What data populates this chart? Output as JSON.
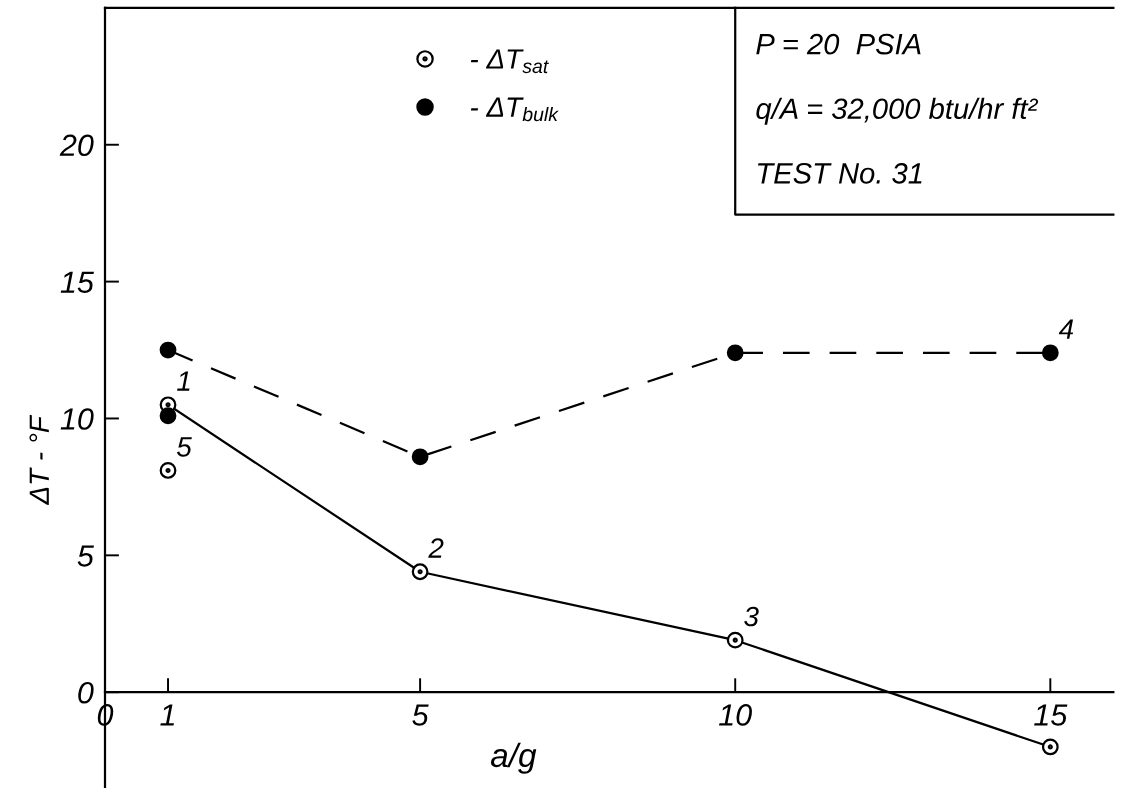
{
  "chart_data": {
    "type": "line",
    "xlabel": "a/g",
    "ylabel": "ΔT - °F",
    "xlim": [
      0,
      16
    ],
    "ylim": [
      -3.5,
      25
    ],
    "xticks": [
      0,
      1,
      5,
      10,
      15
    ],
    "yticks": [
      0,
      5,
      10,
      15,
      20
    ],
    "grid": false,
    "legend": "top",
    "series": [
      {
        "name": "- ΔT$_{sat}$",
        "color": "#000000",
        "marker": "circle-dot",
        "line_style": "solid",
        "x": [
          1,
          5,
          10,
          15
        ],
        "values": [
          10.5,
          4.4,
          1.9,
          -2.0
        ]
      },
      {
        "name": "- ΔT$_{bulk}$",
        "color": "#000000",
        "marker": "circle",
        "line_style": "dashed",
        "x": [
          1,
          5,
          10,
          15
        ],
        "values": [
          12.5,
          8.6,
          12.4,
          12.4
        ]
      },
      {
        "color": "#000000",
        "type": "scatter",
        "marker": "circle-dot",
        "x": [
          1
        ],
        "values": [
          8.1
        ]
      },
      {
        "color": "#000000",
        "type": "scatter",
        "marker": "circle",
        "x": [
          1
        ],
        "values": [
          10.1
        ]
      }
    ],
    "annotations": [
      "P = 20  PSIA",
      "q/A = 32,000 btu/hr ft²",
      "TEST No. 31",
      {
        "text": "1",
        "x": 1,
        "y": 10.5
      },
      {
        "text": "2",
        "x": 5,
        "y": 4.4
      },
      {
        "text": "3",
        "x": 10,
        "y": 1.9
      },
      {
        "text": "4",
        "x": 15,
        "y": 12.4
      },
      {
        "text": "5",
        "x": 1,
        "y": 8.1
      }
    ]
  }
}
